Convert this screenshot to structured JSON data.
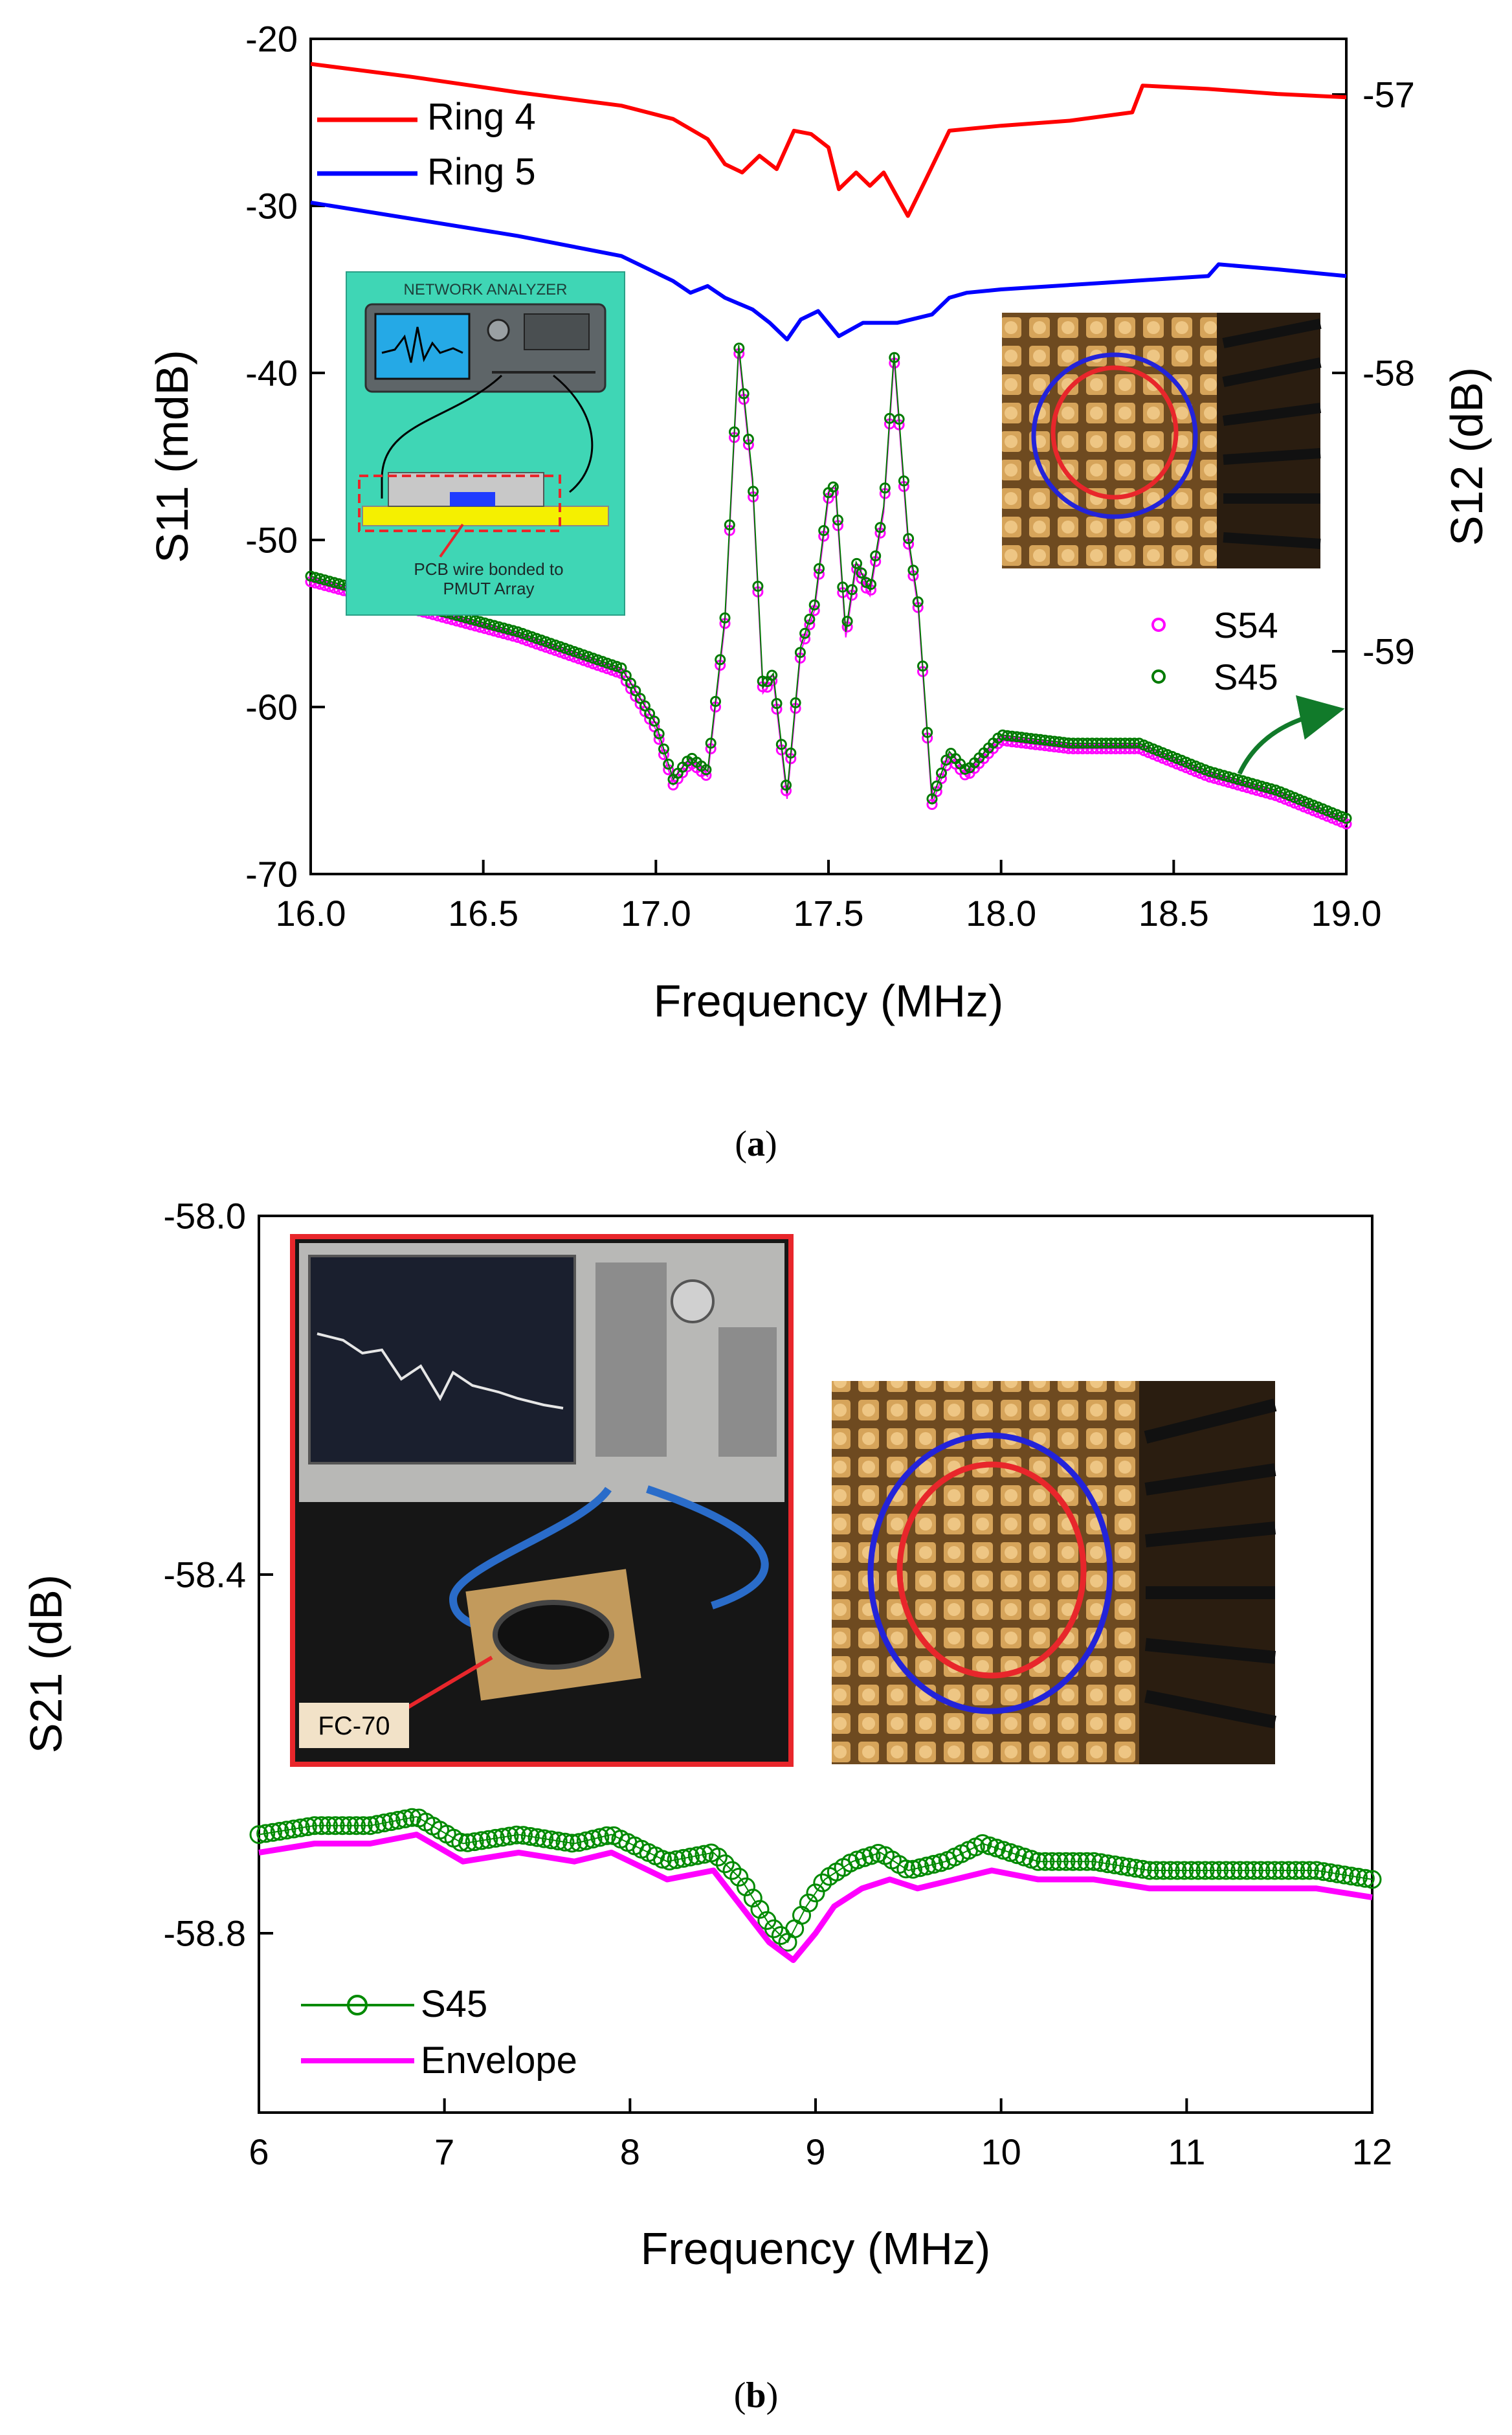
{
  "panel_a": {
    "label": "a",
    "inset_schematic": {
      "title": "NETWORK ANALYZER",
      "caption_line1": "PCB wire bonded to",
      "caption_line2": "PMUT Array",
      "colors": {
        "bg": "#3fd6b5",
        "analyzer": "#5e6568",
        "screen": "#25a9e6",
        "pcb": "#f5f000",
        "dash": "#e8262b"
      }
    },
    "inset_micrograph": {
      "ring_colors": [
        "#e8262b",
        "#2323d9"
      ]
    }
  },
  "panel_b": {
    "label": "b",
    "inset_photo": {
      "label": "FC-70",
      "frame_color": "#e8262b"
    },
    "inset_micrograph": {
      "ring_colors": [
        "#e8262b",
        "#2323d9"
      ]
    }
  },
  "chart_data": [
    {
      "type": "line",
      "panel": "a",
      "xlabel": "Frequency (MHz)",
      "ylabel": "S11 (mdB)",
      "y2label": "S12 (dB)",
      "xlim": [
        16.0,
        19.0
      ],
      "ylim": [
        -70,
        -20
      ],
      "y2lim": [
        -59.8,
        -56.8
      ],
      "xticks": [
        "16.0",
        "16.5",
        "17.0",
        "17.5",
        "18.0",
        "18.5",
        "19.0"
      ],
      "xtick_values": [
        16.0,
        16.5,
        17.0,
        17.5,
        18.0,
        18.5,
        19.0
      ],
      "yticks": [
        "-20",
        "-30",
        "-40",
        "-50",
        "-60",
        "-70"
      ],
      "ytick_values": [
        -20,
        -30,
        -40,
        -50,
        -60,
        -70
      ],
      "y2ticks": [
        "-57",
        "-58",
        "-59"
      ],
      "y2tick_values": [
        -57,
        -58,
        -59
      ],
      "series": [
        {
          "name": "Ring 4",
          "axis": "left",
          "color": "#ff0000",
          "x": [
            16.0,
            16.3,
            16.6,
            16.9,
            17.05,
            17.15,
            17.2,
            17.25,
            17.3,
            17.35,
            17.4,
            17.45,
            17.5,
            17.53,
            17.58,
            17.62,
            17.66,
            17.7,
            17.73,
            17.78,
            17.85,
            18.0,
            18.2,
            18.38,
            18.41,
            18.6,
            18.8,
            19.0
          ],
          "y": [
            -21.5,
            -22.3,
            -23.2,
            -24.0,
            -24.8,
            -26.0,
            -27.5,
            -28.0,
            -27.0,
            -27.8,
            -25.5,
            -25.7,
            -26.5,
            -29.0,
            -28.0,
            -28.8,
            -28.0,
            -29.5,
            -30.6,
            -28.5,
            -25.5,
            -25.2,
            -24.9,
            -24.4,
            -22.8,
            -23.0,
            -23.3,
            -23.5
          ]
        },
        {
          "name": "Ring 5",
          "axis": "left",
          "color": "#0000ff",
          "x": [
            16.0,
            16.3,
            16.6,
            16.9,
            17.05,
            17.1,
            17.15,
            17.2,
            17.28,
            17.33,
            17.38,
            17.42,
            17.47,
            17.53,
            17.6,
            17.7,
            17.8,
            17.85,
            17.9,
            18.0,
            18.3,
            18.6,
            18.63,
            18.8,
            19.0
          ],
          "y": [
            -29.8,
            -30.8,
            -31.8,
            -33.0,
            -34.5,
            -35.2,
            -34.8,
            -35.5,
            -36.2,
            -37.0,
            -38.0,
            -36.8,
            -36.3,
            -37.8,
            -37.0,
            -37.0,
            -36.5,
            -35.5,
            -35.2,
            -35.0,
            -34.6,
            -34.2,
            -33.5,
            -33.8,
            -34.2
          ]
        },
        {
          "name": "S54",
          "axis": "right",
          "color": "#ff00ff",
          "marker": "circle",
          "x": [
            16.0,
            16.3,
            16.6,
            16.9,
            17.0,
            17.05,
            17.1,
            17.15,
            17.2,
            17.24,
            17.28,
            17.31,
            17.34,
            17.38,
            17.42,
            17.46,
            17.5,
            17.52,
            17.55,
            17.58,
            17.62,
            17.66,
            17.69,
            17.73,
            17.76,
            17.8,
            17.85,
            17.9,
            18.0,
            18.2,
            18.4,
            18.6,
            18.8,
            19.0
          ],
          "y": [
            -58.75,
            -58.85,
            -58.95,
            -59.08,
            -59.28,
            -59.48,
            -59.4,
            -59.45,
            -58.9,
            -57.92,
            -58.4,
            -59.15,
            -59.1,
            -59.53,
            -59.0,
            -58.85,
            -58.45,
            -58.42,
            -58.95,
            -58.7,
            -58.8,
            -58.5,
            -57.95,
            -58.6,
            -58.85,
            -59.55,
            -59.38,
            -59.45,
            -59.32,
            -59.35,
            -59.35,
            -59.45,
            -59.52,
            -59.62
          ]
        },
        {
          "name": "S45",
          "axis": "right",
          "color": "#007a00",
          "marker": "circle",
          "x": [
            16.0,
            16.3,
            16.6,
            16.9,
            17.0,
            17.05,
            17.1,
            17.15,
            17.2,
            17.24,
            17.28,
            17.31,
            17.34,
            17.38,
            17.42,
            17.46,
            17.5,
            17.52,
            17.55,
            17.58,
            17.62,
            17.66,
            17.69,
            17.73,
            17.76,
            17.8,
            17.85,
            17.9,
            18.0,
            18.2,
            18.4,
            18.6,
            18.8,
            19.0
          ],
          "y": [
            -58.73,
            -58.83,
            -58.93,
            -59.06,
            -59.26,
            -59.46,
            -59.38,
            -59.43,
            -58.88,
            -57.9,
            -58.38,
            -59.13,
            -59.08,
            -59.51,
            -58.98,
            -58.83,
            -58.43,
            -58.4,
            -58.93,
            -58.68,
            -58.78,
            -58.48,
            -57.93,
            -58.58,
            -58.83,
            -59.53,
            -59.36,
            -59.43,
            -59.3,
            -59.33,
            -59.33,
            -59.43,
            -59.5,
            -59.6
          ]
        }
      ],
      "legend_top": [
        "Ring 4",
        "Ring 5"
      ],
      "legend_bottom": [
        "S54",
        "S45"
      ]
    },
    {
      "type": "line",
      "panel": "b",
      "xlabel": "Frequency (MHz)",
      "ylabel": "S21 (dB)",
      "xlim": [
        6,
        12
      ],
      "ylim": [
        -59.0,
        -58.0
      ],
      "xticks": [
        "6",
        "7",
        "8",
        "9",
        "10",
        "11",
        "12"
      ],
      "xtick_values": [
        6,
        7,
        8,
        9,
        10,
        11,
        12
      ],
      "yticks": [
        "-58.0",
        "-58.4",
        "-58.8"
      ],
      "ytick_values": [
        -58.0,
        -58.4,
        -58.8
      ],
      "series": [
        {
          "name": "S45",
          "color": "#008a00",
          "marker": "circle",
          "x": [
            6.0,
            6.3,
            6.6,
            6.85,
            7.1,
            7.4,
            7.7,
            7.9,
            8.2,
            8.45,
            8.6,
            8.75,
            8.85,
            8.95,
            9.05,
            9.2,
            9.35,
            9.5,
            9.7,
            9.9,
            10.2,
            10.5,
            10.8,
            11.1,
            11.4,
            11.7,
            12.0
          ],
          "y": [
            -58.69,
            -58.68,
            -58.68,
            -58.67,
            -58.7,
            -58.69,
            -58.7,
            -58.69,
            -58.72,
            -58.71,
            -58.74,
            -58.79,
            -58.81,
            -58.77,
            -58.74,
            -58.72,
            -58.71,
            -58.73,
            -58.72,
            -58.7,
            -58.72,
            -58.72,
            -58.73,
            -58.73,
            -58.73,
            -58.73,
            -58.74
          ]
        },
        {
          "name": "Envelope",
          "color": "#ff00ff",
          "x": [
            6.0,
            6.3,
            6.6,
            6.85,
            7.1,
            7.4,
            7.7,
            7.9,
            8.2,
            8.45,
            8.6,
            8.75,
            8.88,
            9.0,
            9.1,
            9.25,
            9.4,
            9.55,
            9.75,
            9.95,
            10.2,
            10.5,
            10.8,
            11.1,
            11.4,
            11.7,
            12.0
          ],
          "y": [
            -58.71,
            -58.7,
            -58.7,
            -58.69,
            -58.72,
            -58.71,
            -58.72,
            -58.71,
            -58.74,
            -58.73,
            -58.77,
            -58.81,
            -58.83,
            -58.8,
            -58.77,
            -58.75,
            -58.74,
            -58.75,
            -58.74,
            -58.73,
            -58.74,
            -58.74,
            -58.75,
            -58.75,
            -58.75,
            -58.75,
            -58.76
          ]
        }
      ],
      "legend": [
        "S45",
        "Envelope"
      ]
    }
  ]
}
